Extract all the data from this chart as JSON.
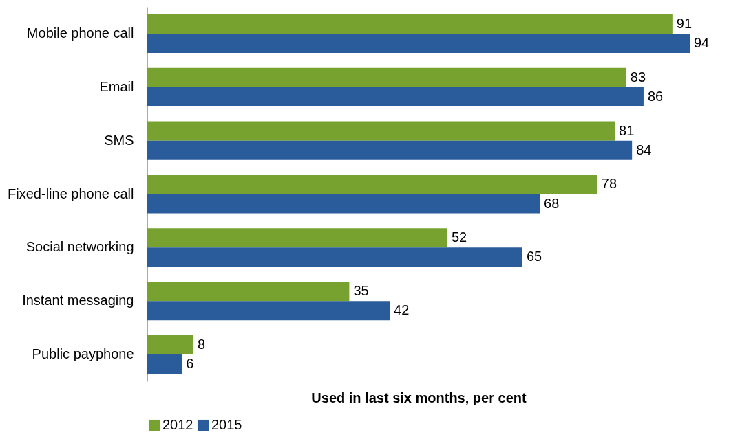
{
  "chart_data": {
    "type": "bar",
    "orientation": "horizontal",
    "xlabel": "Used in last six months, per cent",
    "categories": [
      "Mobile phone call",
      "Email",
      "SMS",
      "Fixed-line phone call",
      "Social networking",
      "Instant messaging",
      "Public payphone"
    ],
    "series": [
      {
        "name": "2012",
        "color": "#78a22f",
        "values": [
          91,
          83,
          81,
          78,
          52,
          35,
          8
        ]
      },
      {
        "name": "2015",
        "color": "#2a5b9b",
        "values": [
          94,
          86,
          84,
          68,
          65,
          42,
          6
        ]
      }
    ],
    "data_labels": true,
    "legend": "bottom",
    "tick_labels": "y",
    "grid": false
  }
}
